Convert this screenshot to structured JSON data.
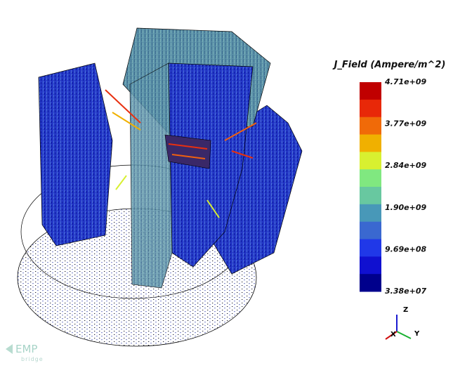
{
  "legend": {
    "title": "J_Field (Ampere/m^2)",
    "labels": [
      "4.71e+09",
      "3.77e+09",
      "2.84e+09",
      "1.90e+09",
      "9.69e+08",
      "3.38e+07"
    ],
    "colors": [
      "#c00000",
      "#e82808",
      "#f06a08",
      "#f0b000",
      "#d8f030",
      "#80e880",
      "#68c8a0",
      "#4898b8",
      "#3a68d0",
      "#2038e8",
      "#1010d0",
      "#00008c"
    ]
  },
  "axes": {
    "x": "X",
    "y": "Y",
    "z": "Z"
  },
  "logo": {
    "name": "EMP",
    "sub": "bridge"
  }
}
